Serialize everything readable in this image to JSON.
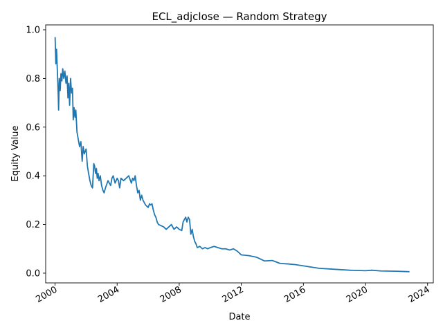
{
  "chart_data": {
    "type": "line",
    "title": "ECL_adjclose — Random Strategy",
    "xlabel": "Date",
    "ylabel": "Equity Value",
    "xlim": [
      "1999-05-26",
      "2024-05-15"
    ],
    "ylim": [
      -0.04,
      1.02
    ],
    "x_ticks": [
      "2000",
      "2004",
      "2008",
      "2012",
      "2016",
      "2020",
      "2024"
    ],
    "y_ticks": [
      "0.0",
      "0.2",
      "0.4",
      "0.6",
      "0.8",
      "1.0"
    ],
    "grid": false,
    "legend": "none",
    "series": [
      {
        "color": "#1f77b4",
        "points": [
          [
            "2000-01-03",
            0.97
          ],
          [
            "2000-01-20",
            0.86
          ],
          [
            "2000-02-05",
            0.92
          ],
          [
            "2000-02-25",
            0.83
          ],
          [
            "2000-03-15",
            0.74
          ],
          [
            "2000-03-25",
            0.67
          ],
          [
            "2000-04-10",
            0.8
          ],
          [
            "2000-05-01",
            0.75
          ],
          [
            "2000-05-20",
            0.82
          ],
          [
            "2000-06-10",
            0.79
          ],
          [
            "2000-07-01",
            0.84
          ],
          [
            "2000-07-25",
            0.8
          ],
          [
            "2000-08-20",
            0.83
          ],
          [
            "2000-09-15",
            0.78
          ],
          [
            "2000-10-10",
            0.81
          ],
          [
            "2000-11-01",
            0.72
          ],
          [
            "2000-11-20",
            0.78
          ],
          [
            "2000-12-10",
            0.69
          ],
          [
            "2001-01-01",
            0.8
          ],
          [
            "2001-01-25",
            0.74
          ],
          [
            "2001-02-15",
            0.76
          ],
          [
            "2001-03-05",
            0.63
          ],
          [
            "2001-03-25",
            0.68
          ],
          [
            "2001-04-15",
            0.64
          ],
          [
            "2001-05-05",
            0.67
          ],
          [
            "2001-06-01",
            0.58
          ],
          [
            "2001-07-01",
            0.55
          ],
          [
            "2001-08-01",
            0.52
          ],
          [
            "2001-09-01",
            0.54
          ],
          [
            "2001-10-01",
            0.46
          ],
          [
            "2001-10-25",
            0.52
          ],
          [
            "2001-11-20",
            0.49
          ],
          [
            "2002-01-01",
            0.51
          ],
          [
            "2002-02-01",
            0.44
          ],
          [
            "2002-03-01",
            0.41
          ],
          [
            "2002-04-01",
            0.38
          ],
          [
            "2002-05-01",
            0.36
          ],
          [
            "2002-06-01",
            0.35
          ],
          [
            "2002-07-01",
            0.45
          ],
          [
            "2002-07-20",
            0.44
          ],
          [
            "2002-08-10",
            0.41
          ],
          [
            "2002-09-01",
            0.43
          ],
          [
            "2002-09-20",
            0.39
          ],
          [
            "2002-10-10",
            0.41
          ],
          [
            "2002-11-01",
            0.38
          ],
          [
            "2002-12-01",
            0.4
          ],
          [
            "2003-01-01",
            0.36
          ],
          [
            "2003-02-01",
            0.34
          ],
          [
            "2003-03-01",
            0.33
          ],
          [
            "2003-04-01",
            0.35
          ],
          [
            "2003-06-01",
            0.38
          ],
          [
            "2003-08-01",
            0.36
          ],
          [
            "2003-09-01",
            0.39
          ],
          [
            "2003-10-01",
            0.4
          ],
          [
            "2003-11-15",
            0.37
          ],
          [
            "2004-01-01",
            0.39
          ],
          [
            "2004-02-01",
            0.38
          ],
          [
            "2004-03-01",
            0.35
          ],
          [
            "2004-04-01",
            0.39
          ],
          [
            "2004-06-01",
            0.38
          ],
          [
            "2004-08-01",
            0.39
          ],
          [
            "2004-10-01",
            0.4
          ],
          [
            "2004-12-01",
            0.37
          ],
          [
            "2005-01-01",
            0.39
          ],
          [
            "2005-02-01",
            0.38
          ],
          [
            "2005-03-01",
            0.4
          ],
          [
            "2005-04-01",
            0.36
          ],
          [
            "2005-05-01",
            0.33
          ],
          [
            "2005-06-01",
            0.34
          ],
          [
            "2005-07-01",
            0.3
          ],
          [
            "2005-08-01",
            0.32
          ],
          [
            "2005-09-01",
            0.3
          ],
          [
            "2005-10-01",
            0.29
          ],
          [
            "2005-11-01",
            0.28
          ],
          [
            "2006-01-01",
            0.27
          ],
          [
            "2006-02-01",
            0.285
          ],
          [
            "2006-03-01",
            0.28
          ],
          [
            "2006-04-01",
            0.285
          ],
          [
            "2006-05-01",
            0.26
          ],
          [
            "2006-06-01",
            0.24
          ],
          [
            "2006-07-01",
            0.23
          ],
          [
            "2006-08-01",
            0.21
          ],
          [
            "2006-09-01",
            0.2
          ],
          [
            "2006-11-01",
            0.195
          ],
          [
            "2007-01-01",
            0.19
          ],
          [
            "2007-03-01",
            0.18
          ],
          [
            "2007-05-01",
            0.19
          ],
          [
            "2007-07-01",
            0.2
          ],
          [
            "2007-09-01",
            0.18
          ],
          [
            "2007-11-01",
            0.19
          ],
          [
            "2008-01-01",
            0.18
          ],
          [
            "2008-03-01",
            0.175
          ],
          [
            "2008-04-01",
            0.21
          ],
          [
            "2008-05-01",
            0.22
          ],
          [
            "2008-06-01",
            0.23
          ],
          [
            "2008-07-01",
            0.21
          ],
          [
            "2008-08-01",
            0.23
          ],
          [
            "2008-09-01",
            0.22
          ],
          [
            "2008-10-01",
            0.16
          ],
          [
            "2008-11-01",
            0.18
          ],
          [
            "2008-12-01",
            0.15
          ],
          [
            "2009-01-01",
            0.13
          ],
          [
            "2009-02-01",
            0.12
          ],
          [
            "2009-03-01",
            0.105
          ],
          [
            "2009-05-01",
            0.11
          ],
          [
            "2009-07-01",
            0.1
          ],
          [
            "2009-09-01",
            0.105
          ],
          [
            "2009-11-01",
            0.1
          ],
          [
            "2010-01-01",
            0.105
          ],
          [
            "2010-04-01",
            0.11
          ],
          [
            "2010-07-01",
            0.105
          ],
          [
            "2010-10-01",
            0.1
          ],
          [
            "2011-01-01",
            0.1
          ],
          [
            "2011-04-01",
            0.095
          ],
          [
            "2011-07-01",
            0.1
          ],
          [
            "2011-10-01",
            0.09
          ],
          [
            "2012-01-01",
            0.075
          ],
          [
            "2012-07-01",
            0.072
          ],
          [
            "2013-01-01",
            0.065
          ],
          [
            "2013-07-01",
            0.05
          ],
          [
            "2014-01-01",
            0.052
          ],
          [
            "2014-07-01",
            0.04
          ],
          [
            "2015-01-01",
            0.038
          ],
          [
            "2015-07-01",
            0.035
          ],
          [
            "2016-01-01",
            0.03
          ],
          [
            "2016-07-01",
            0.025
          ],
          [
            "2017-01-01",
            0.02
          ],
          [
            "2018-01-01",
            0.016
          ],
          [
            "2019-01-01",
            0.012
          ],
          [
            "2020-01-01",
            0.01
          ],
          [
            "2020-06-01",
            0.012
          ],
          [
            "2021-01-01",
            0.009
          ],
          [
            "2022-01-01",
            0.008
          ],
          [
            "2022-11-01",
            0.006
          ]
        ]
      }
    ]
  }
}
